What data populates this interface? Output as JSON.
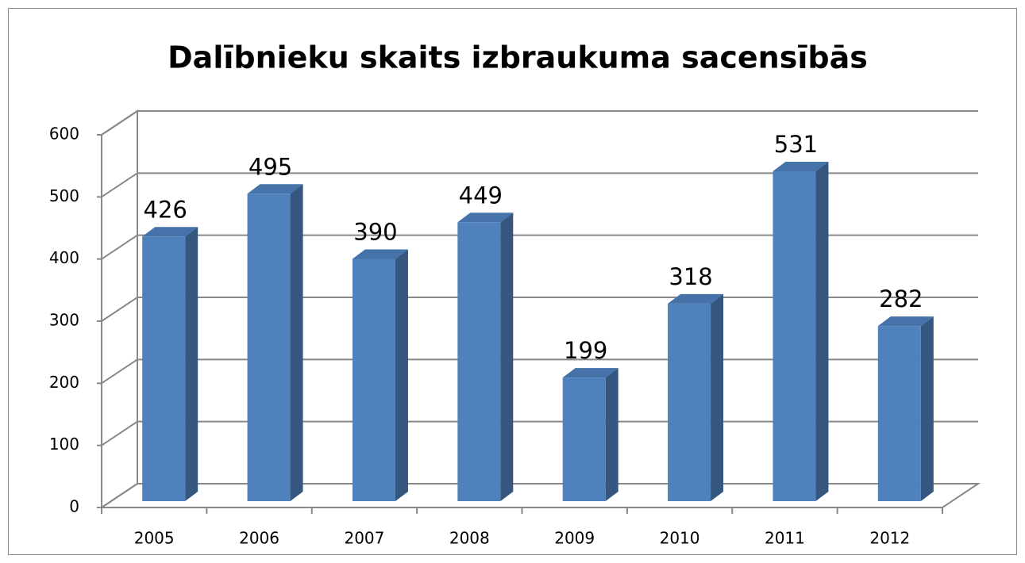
{
  "chart_data": {
    "type": "bar3d",
    "title": "Dalībnieku skaits izbraukuma sacensībās",
    "categories": [
      "2005",
      "2006",
      "2007",
      "2008",
      "2009",
      "2010",
      "2011",
      "2012"
    ],
    "values": [
      426,
      495,
      390,
      449,
      199,
      318,
      531,
      282
    ],
    "color": "#4f81bd",
    "ylim": [
      0,
      600
    ],
    "yticks": [
      0,
      100,
      200,
      300,
      400,
      500,
      600
    ],
    "grid": true
  }
}
